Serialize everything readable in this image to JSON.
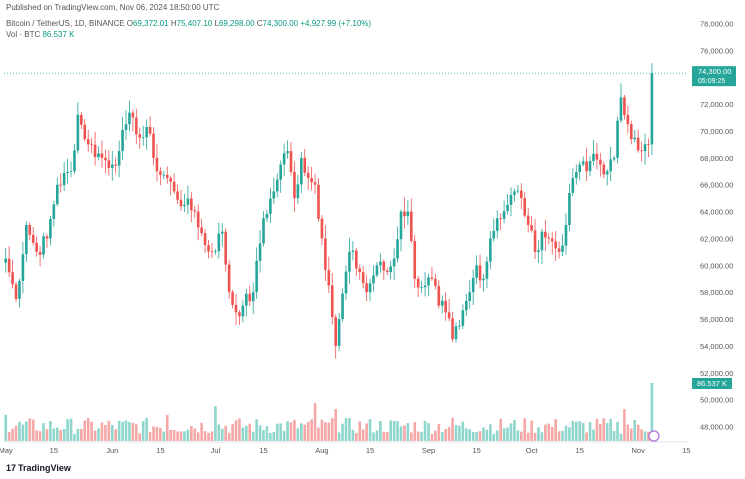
{
  "header": {
    "published": "Published on TradingView.com, Nov 06, 2024 18:50:00 UTC",
    "symbol": "Bitcoin / TetherUS, 1D, BINANCE",
    "open_label": "O",
    "open": "69,372.01",
    "high_label": "H",
    "high": "75,407.10",
    "low_label": "L",
    "low": "69,298.00",
    "close_label": "C",
    "close": "74,300.00",
    "change": "+4,927.99 (+7.10%)",
    "volume_label": "Vol · BTC",
    "volume": "86.537 K"
  },
  "footer": {
    "logo_mark": "17",
    "logo_text": "TradingView"
  },
  "chart_data": {
    "type": "candlestick",
    "title": "Bitcoin / TetherUS, 1D, BINANCE",
    "ylim": [
      47000,
      79000
    ],
    "y_ticks": [
      {
        "value": 48000,
        "label": "48,000.00"
      },
      {
        "value": 50000,
        "label": "50,000.00"
      },
      {
        "value": 52000,
        "label": "52,000.00"
      },
      {
        "value": 54000,
        "label": "54,000.00"
      },
      {
        "value": 56000,
        "label": "56,000.00"
      },
      {
        "value": 58000,
        "label": "58,000.00"
      },
      {
        "value": 60000,
        "label": "60,000.00"
      },
      {
        "value": 62000,
        "label": "62,000.00"
      },
      {
        "value": 64000,
        "label": "64,000.00"
      },
      {
        "value": 66000,
        "label": "66,000.00"
      },
      {
        "value": 68000,
        "label": "68,000.00"
      },
      {
        "value": 70000,
        "label": "70,000.00"
      },
      {
        "value": 72000,
        "label": "72,000.00"
      },
      {
        "value": 76000,
        "label": "76,000.00"
      },
      {
        "value": 78000,
        "label": "78,000.00"
      }
    ],
    "x_ticks": [
      {
        "index": 0,
        "label": "May"
      },
      {
        "index": 14,
        "label": "15"
      },
      {
        "index": 31,
        "label": "Jun"
      },
      {
        "index": 45,
        "label": "15"
      },
      {
        "index": 61,
        "label": "Jul"
      },
      {
        "index": 75,
        "label": "15"
      },
      {
        "index": 92,
        "label": "Aug"
      },
      {
        "index": 106,
        "label": "15"
      },
      {
        "index": 123,
        "label": "Sep"
      },
      {
        "index": 137,
        "label": "15"
      },
      {
        "index": 153,
        "label": "Oct"
      },
      {
        "index": 167,
        "label": "15"
      },
      {
        "index": 184,
        "label": "Nov"
      },
      {
        "index": 198,
        "label": "15"
      }
    ],
    "price_label": {
      "value": 74300,
      "text": "74,300.00",
      "countdown": "05:09:25"
    },
    "volume_label": {
      "text": "86.537 K"
    },
    "anchors": [
      {
        "day": 0,
        "price": 60500
      },
      {
        "day": 3,
        "price": 57500
      },
      {
        "day": 6,
        "price": 63000
      },
      {
        "day": 9,
        "price": 61000
      },
      {
        "day": 12,
        "price": 62000
      },
      {
        "day": 15,
        "price": 66000
      },
      {
        "day": 19,
        "price": 67000
      },
      {
        "day": 21,
        "price": 71200
      },
      {
        "day": 24,
        "price": 69000
      },
      {
        "day": 28,
        "price": 68000
      },
      {
        "day": 31,
        "price": 67500
      },
      {
        "day": 33,
        "price": 68500
      },
      {
        "day": 35,
        "price": 70500
      },
      {
        "day": 37,
        "price": 71000
      },
      {
        "day": 39,
        "price": 69500
      },
      {
        "day": 42,
        "price": 69800
      },
      {
        "day": 44,
        "price": 67000
      },
      {
        "day": 47,
        "price": 66500
      },
      {
        "day": 49,
        "price": 65500
      },
      {
        "day": 52,
        "price": 64500
      },
      {
        "day": 55,
        "price": 64000
      },
      {
        "day": 58,
        "price": 61500
      },
      {
        "day": 60,
        "price": 61000
      },
      {
        "day": 63,
        "price": 62500
      },
      {
        "day": 65,
        "price": 58000
      },
      {
        "day": 67,
        "price": 56500
      },
      {
        "day": 69,
        "price": 57000
      },
      {
        "day": 72,
        "price": 58000
      },
      {
        "day": 75,
        "price": 63500
      },
      {
        "day": 78,
        "price": 65500
      },
      {
        "day": 80,
        "price": 67500
      },
      {
        "day": 82,
        "price": 68500
      },
      {
        "day": 84,
        "price": 65000
      },
      {
        "day": 86,
        "price": 68000
      },
      {
        "day": 88,
        "price": 66500
      },
      {
        "day": 90,
        "price": 66000
      },
      {
        "day": 92,
        "price": 62000
      },
      {
        "day": 94,
        "price": 58500
      },
      {
        "day": 96,
        "price": 54000
      },
      {
        "day": 97,
        "price": 56000
      },
      {
        "day": 100,
        "price": 61000
      },
      {
        "day": 103,
        "price": 59500
      },
      {
        "day": 105,
        "price": 58000
      },
      {
        "day": 108,
        "price": 60000
      },
      {
        "day": 111,
        "price": 59500
      },
      {
        "day": 113,
        "price": 60500
      },
      {
        "day": 115,
        "price": 64000
      },
      {
        "day": 117,
        "price": 64000
      },
      {
        "day": 119,
        "price": 59000
      },
      {
        "day": 122,
        "price": 58500
      },
      {
        "day": 124,
        "price": 59000
      },
      {
        "day": 126,
        "price": 57000
      },
      {
        "day": 128,
        "price": 56500
      },
      {
        "day": 130,
        "price": 54500
      },
      {
        "day": 132,
        "price": 55500
      },
      {
        "day": 135,
        "price": 58000
      },
      {
        "day": 137,
        "price": 60000
      },
      {
        "day": 139,
        "price": 59000
      },
      {
        "day": 141,
        "price": 62000
      },
      {
        "day": 143,
        "price": 63500
      },
      {
        "day": 146,
        "price": 64500
      },
      {
        "day": 148,
        "price": 65500
      },
      {
        "day": 150,
        "price": 65000
      },
      {
        "day": 152,
        "price": 63000
      },
      {
        "day": 154,
        "price": 61000
      },
      {
        "day": 156,
        "price": 62500
      },
      {
        "day": 158,
        "price": 62000
      },
      {
        "day": 161,
        "price": 61000
      },
      {
        "day": 163,
        "price": 63000
      },
      {
        "day": 165,
        "price": 66500
      },
      {
        "day": 167,
        "price": 67500
      },
      {
        "day": 169,
        "price": 67000
      },
      {
        "day": 171,
        "price": 68300
      },
      {
        "day": 173,
        "price": 67500
      },
      {
        "day": 175,
        "price": 67000
      },
      {
        "day": 177,
        "price": 68000
      },
      {
        "day": 179,
        "price": 72500
      },
      {
        "day": 181,
        "price": 70500
      },
      {
        "day": 183,
        "price": 69500
      },
      {
        "day": 185,
        "price": 68500
      },
      {
        "day": 187,
        "price": 69000
      },
      {
        "day": 188,
        "price": 74300
      }
    ],
    "volume_peaks": [
      {
        "day": 90,
        "relative": 0.65
      },
      {
        "day": 96,
        "relative": 0.55
      },
      {
        "day": 47,
        "relative": 0.45
      },
      {
        "day": 188,
        "relative": 1.0
      },
      {
        "day": 180,
        "relative": 0.55
      },
      {
        "day": 0,
        "relative": 0.45
      },
      {
        "day": 61,
        "relative": 0.6
      },
      {
        "day": 130,
        "relative": 0.4
      }
    ]
  }
}
